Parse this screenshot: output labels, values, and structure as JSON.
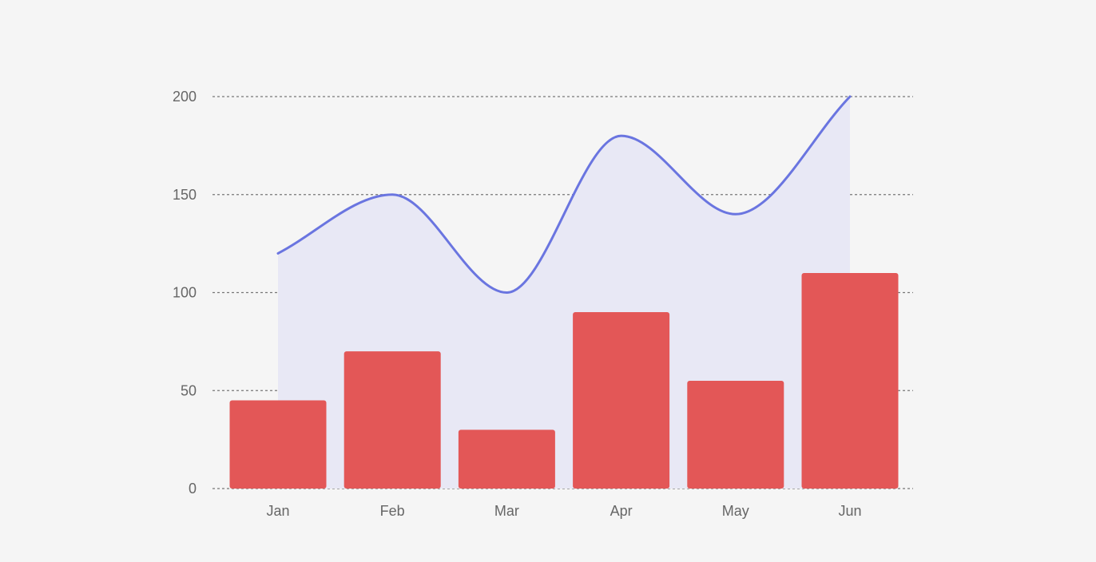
{
  "chart_data": {
    "type": "bar",
    "categories": [
      "Jan",
      "Feb",
      "Mar",
      "Apr",
      "May",
      "Jun"
    ],
    "series": [
      {
        "type": "bar",
        "values": [
          45,
          70,
          30,
          90,
          55,
          110
        ],
        "color": "#e35757"
      },
      {
        "type": "area",
        "smooth": true,
        "values": [
          120,
          150,
          100,
          180,
          140,
          200
        ],
        "color": "#6a75e0",
        "fill_color": "#e8e8f5"
      }
    ],
    "yticks": [
      0,
      50,
      100,
      150,
      200
    ],
    "ylim": [
      0,
      200
    ],
    "grid": true,
    "grid_style": "dashed",
    "legend": false
  }
}
